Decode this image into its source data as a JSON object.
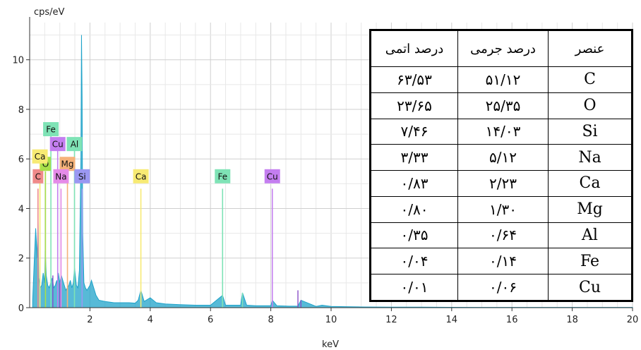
{
  "chart_data": {
    "type": "line",
    "title": "",
    "ylabel": "cps/eV",
    "xlabel": "keV",
    "xlim": [
      0,
      20
    ],
    "ylim": [
      0,
      11.5
    ],
    "x_ticks": [
      2,
      4,
      6,
      8,
      10,
      12,
      14,
      16,
      18,
      20
    ],
    "y_ticks": [
      0,
      2,
      4,
      6,
      8,
      10
    ],
    "grid": true,
    "spectrum_color": "#1fa3c9",
    "spectrum": {
      "x": [
        0.1,
        0.15,
        0.2,
        0.25,
        0.28,
        0.3,
        0.35,
        0.4,
        0.45,
        0.5,
        0.52,
        0.55,
        0.6,
        0.65,
        0.7,
        0.75,
        0.8,
        0.85,
        0.9,
        0.93,
        0.95,
        1.0,
        1.05,
        1.1,
        1.15,
        1.2,
        1.25,
        1.3,
        1.35,
        1.4,
        1.45,
        1.49,
        1.55,
        1.6,
        1.65,
        1.7,
        1.72,
        1.74,
        1.76,
        1.8,
        1.85,
        1.9,
        2.0,
        2.05,
        2.1,
        2.15,
        2.2,
        2.3,
        2.5,
        2.8,
        3.0,
        3.3,
        3.5,
        3.6,
        3.69,
        3.8,
        4.0,
        4.2,
        4.5,
        5.0,
        5.5,
        6.0,
        6.4,
        6.5,
        7.0,
        7.06,
        7.2,
        7.5,
        8.0,
        8.05,
        8.2,
        8.6,
        8.9,
        9.0,
        9.5,
        9.7,
        10.0,
        10.5,
        11.0,
        12.0,
        13.0,
        15.0,
        20.0
      ],
      "y": [
        0.3,
        1.8,
        3.2,
        2.0,
        3.6,
        1.2,
        0.8,
        0.9,
        1.4,
        1.0,
        2.3,
        1.3,
        0.9,
        0.8,
        1.0,
        1.2,
        0.8,
        0.9,
        1.1,
        0.8,
        1.4,
        1.0,
        1.3,
        1.1,
        0.9,
        0.7,
        0.8,
        0.9,
        1.1,
        0.8,
        1.0,
        1.6,
        0.9,
        0.8,
        1.5,
        6.0,
        11.0,
        8.5,
        3.0,
        1.0,
        0.8,
        0.7,
        0.9,
        1.1,
        0.9,
        0.7,
        0.5,
        0.3,
        0.25,
        0.2,
        0.2,
        0.2,
        0.18,
        0.3,
        0.7,
        0.25,
        0.4,
        0.2,
        0.15,
        0.12,
        0.1,
        0.1,
        0.5,
        0.1,
        0.1,
        0.6,
        0.1,
        0.08,
        0.08,
        0.3,
        0.08,
        0.06,
        0.06,
        0.3,
        0.05,
        0.1,
        0.05,
        0.04,
        0.03,
        0.02,
        0.02,
        0.01,
        0.01
      ]
    },
    "element_lines": [
      {
        "label": "C",
        "x": 0.277,
        "height": 4.8,
        "color": "#f08a8a",
        "label_y": 5.3
      },
      {
        "label": "O",
        "x": 0.525,
        "height": 5.5,
        "color": "#a8e04a",
        "label_y": 5.8
      },
      {
        "label": "Ca",
        "x": 0.341,
        "height": 6.2,
        "color": "#f7ea73",
        "label_y": 6.1
      },
      {
        "label": "Fe",
        "x": 0.705,
        "height": 7.2,
        "color": "#7fe3b6",
        "label_y": 7.2
      },
      {
        "label": "Cu",
        "x": 0.93,
        "height": 6.4,
        "color": "#c47ef0",
        "label_y": 6.6
      },
      {
        "label": "Al",
        "x": 1.487,
        "height": 6.5,
        "color": "#7fe3b6",
        "label_y": 6.6
      },
      {
        "label": "Mg",
        "x": 1.254,
        "height": 5.5,
        "color": "#f5b27a",
        "label_y": 5.8
      },
      {
        "label": "Na",
        "x": 1.041,
        "height": 4.8,
        "color": "#e58be8",
        "label_y": 5.3
      },
      {
        "label": "Si",
        "x": 1.74,
        "height": 4.8,
        "color": "#9b98f2",
        "label_y": 5.3
      },
      {
        "label": "Ca",
        "x": 3.69,
        "height": 4.8,
        "color": "#f7ea73",
        "label_y": 5.3
      },
      {
        "label": "Fe",
        "x": 6.4,
        "height": 4.8,
        "color": "#7fe3b6",
        "label_y": 5.3
      },
      {
        "label": "Cu",
        "x": 8.05,
        "height": 4.8,
        "color": "#c47ef0",
        "label_y": 5.3
      }
    ],
    "minor_lines": [
      {
        "x": 0.77,
        "height": 1.3,
        "color": "#8a4fc7"
      },
      {
        "x": 1.0,
        "height": 1.0,
        "color": "#8a4fc7"
      },
      {
        "x": 7.06,
        "height": 0.6,
        "color": "#7fe3b6"
      },
      {
        "x": 8.9,
        "height": 0.7,
        "color": "#8a4fc7"
      },
      {
        "x": 9.0,
        "height": 0.3,
        "color": "#8a4fc7"
      }
    ]
  },
  "table": {
    "headers": [
      "درصد اتمی",
      "درصد جرمی",
      "عنصر"
    ],
    "rows": [
      {
        "element": "C",
        "mass": "۵۱/۱۲",
        "atomic": "۶۳/۵۳"
      },
      {
        "element": "O",
        "mass": "۲۵/۳۵",
        "atomic": "۲۳/۶۵"
      },
      {
        "element": "Si",
        "mass": "۱۴/۰۳",
        "atomic": "۷/۴۶"
      },
      {
        "element": "Na",
        "mass": "۵/۱۲",
        "atomic": "۳/۳۳"
      },
      {
        "element": "Ca",
        "mass": "۲/۲۳",
        "atomic": "۰/۸۳"
      },
      {
        "element": "Mg",
        "mass": "۱/۳۰",
        "atomic": "۰/۸۰"
      },
      {
        "element": "Al",
        "mass": "۰/۶۴",
        "atomic": "۰/۳۵"
      },
      {
        "element": "Fe",
        "mass": "۰/۱۴",
        "atomic": "۰/۰۴"
      },
      {
        "element": "Cu",
        "mass": "۰/۰۶",
        "atomic": "۰/۰۱"
      }
    ]
  }
}
